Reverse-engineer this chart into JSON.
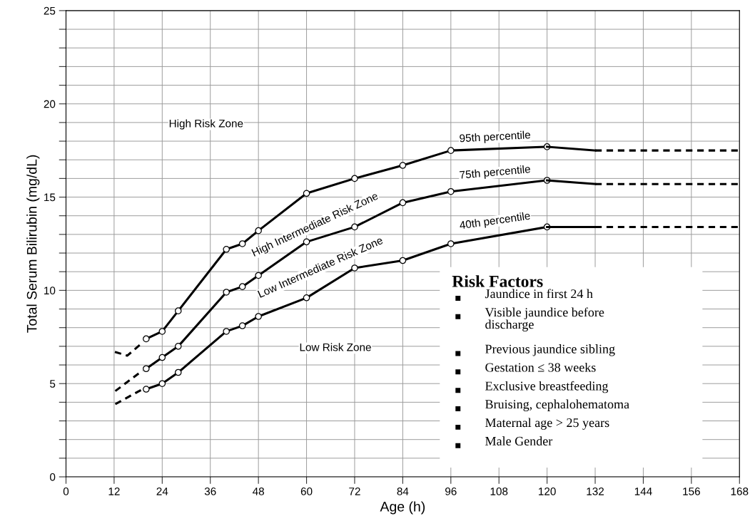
{
  "chart_data": {
    "type": "line",
    "xlabel": "Age (h)",
    "ylabel": "Total Serum Bilirubin (mg/dL)",
    "xlim": [
      0,
      168
    ],
    "xticks": [
      0,
      12,
      24,
      36,
      48,
      60,
      72,
      84,
      96,
      108,
      120,
      132,
      144,
      156,
      168
    ],
    "ylim": [
      0,
      25
    ],
    "yticks": [
      0,
      {
        "value": 1,
        "label": null
      },
      {
        "value": 2,
        "label": null
      },
      {
        "value": 3,
        "label": null
      },
      {
        "value": 4,
        "label": null
      },
      5,
      {
        "value": 6,
        "label": null
      },
      {
        "value": 7,
        "label": null
      },
      {
        "value": 8,
        "label": null
      },
      {
        "value": 9,
        "label": null
      },
      10,
      {
        "value": 11,
        "label": null
      },
      {
        "value": 12,
        "label": null
      },
      {
        "value": 13,
        "label": null
      },
      {
        "value": 14,
        "label": null
      },
      15,
      {
        "value": 16,
        "label": null
      },
      {
        "value": 17,
        "label": null
      },
      {
        "value": 18,
        "label": null
      },
      {
        "value": 19,
        "label": null
      },
      20,
      {
        "value": 21,
        "label": null
      },
      {
        "value": 22,
        "label": null
      },
      {
        "value": 23,
        "label": null
      },
      {
        "value": 24,
        "label": null
      },
      25
    ],
    "grid": true,
    "series": [
      {
        "color": "#000000",
        "line_style": "solid",
        "marker": "circle",
        "x": [
          20,
          24,
          28,
          40,
          44,
          48,
          60,
          72,
          84,
          96,
          120
        ],
        "values": [
          7.4,
          7.8,
          8.9,
          12.2,
          12.5,
          13.2,
          15.2,
          16.0,
          16.7,
          17.5,
          17.7
        ]
      },
      {
        "color": "#000000",
        "line_style": "solid",
        "marker": "none",
        "x": [
          120,
          132
        ],
        "values": [
          17.7,
          17.5
        ]
      },
      {
        "color": "#000000",
        "line_style": "dashed",
        "marker": "none",
        "x": [
          132,
          168
        ],
        "values": [
          17.5,
          17.5
        ]
      },
      {
        "color": "#000000",
        "line_style": "dashed",
        "marker": "none",
        "x": [
          12.2,
          15.3,
          19.1
        ],
        "values": [
          6.7,
          6.5,
          7.2
        ]
      },
      {
        "color": "#000000",
        "line_style": "solid",
        "marker": "circle",
        "x": [
          20,
          24,
          28,
          40,
          44,
          48,
          60,
          72,
          84,
          96,
          120
        ],
        "values": [
          5.8,
          6.4,
          7.0,
          9.9,
          10.2,
          10.8,
          12.6,
          13.4,
          14.7,
          15.3,
          15.9
        ]
      },
      {
        "color": "#000000",
        "line_style": "solid",
        "marker": "none",
        "x": [
          120,
          132
        ],
        "values": [
          15.9,
          15.7
        ]
      },
      {
        "color": "#000000",
        "line_style": "dashed",
        "marker": "none",
        "x": [
          132,
          168
        ],
        "values": [
          15.7,
          15.7
        ]
      },
      {
        "color": "#000000",
        "line_style": "dashed",
        "marker": "none",
        "x": [
          12.3,
          19.1
        ],
        "values": [
          4.6,
          5.7
        ]
      },
      {
        "color": "#000000",
        "line_style": "solid",
        "marker": "circle",
        "x": [
          20,
          24,
          28,
          40,
          44,
          48,
          60,
          72,
          84,
          96,
          120
        ],
        "values": [
          4.7,
          5.0,
          5.6,
          7.8,
          8.1,
          8.6,
          9.6,
          11.2,
          11.6,
          12.5,
          13.4
        ]
      },
      {
        "color": "#000000",
        "line_style": "solid",
        "marker": "none",
        "x": [
          120,
          132
        ],
        "values": [
          13.4,
          13.4
        ]
      },
      {
        "color": "#000000",
        "line_style": "dashed",
        "marker": "none",
        "x": [
          132,
          168
        ],
        "values": [
          13.4,
          13.4
        ]
      },
      {
        "color": "#000000",
        "line_style": "dashed",
        "marker": "none",
        "x": [
          12.3,
          19.1
        ],
        "values": [
          3.9,
          4.7
        ]
      }
    ],
    "annotations": [
      "95th percentile",
      "75th percentile",
      "40th percentile",
      "High Risk Zone",
      "High Intermediate Risk Zone",
      "Low Intermediate Risk Zone",
      "Low Risk Zone",
      "Risk Factors",
      "Jaundice in first 24 h",
      "Visible jaundice before\ndischarge",
      "Previous jaundice sibling",
      "Gestation ≤ 38 weeks",
      "Exclusive breastfeeding",
      "Bruising, cephalohematoma",
      "Maternal age > 25 years",
      "Male Gender"
    ]
  }
}
